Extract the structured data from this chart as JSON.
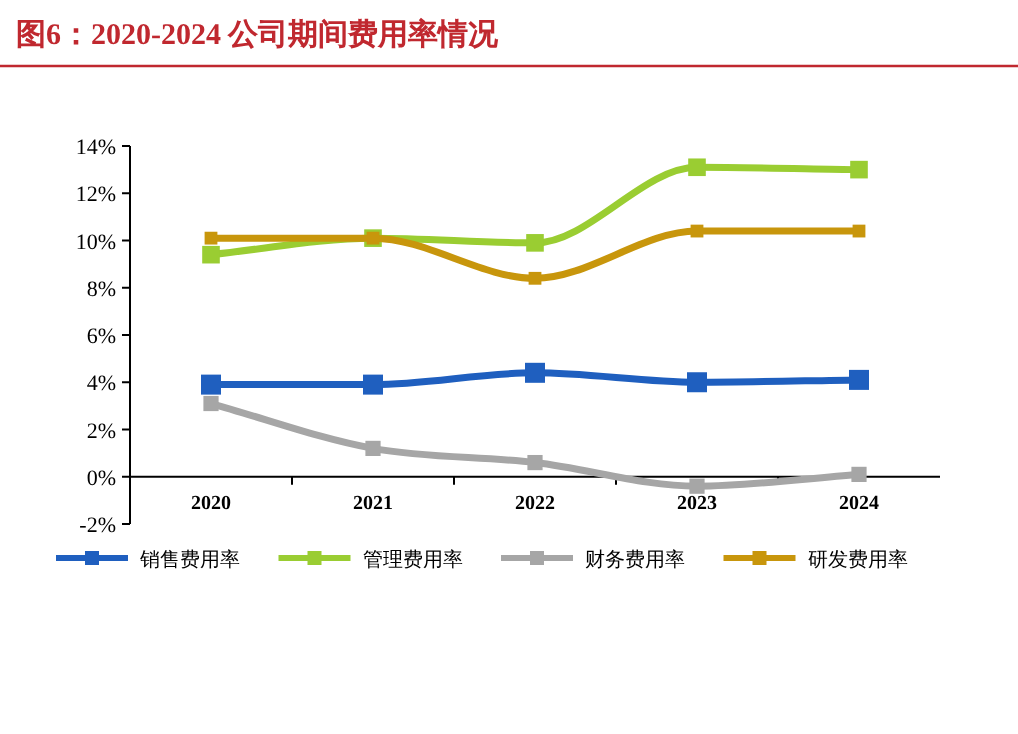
{
  "chart_data": {
    "type": "line",
    "title": "图6：2020-2024 公司期间费用率情况",
    "categories": [
      "2020",
      "2021",
      "2022",
      "2023",
      "2024"
    ],
    "series": [
      {
        "name": "销售费用率",
        "color": "#1f5fbf",
        "values": [
          3.9,
          3.9,
          4.4,
          4.0,
          4.1
        ]
      },
      {
        "name": "管理费用率",
        "color": "#9acd32",
        "values": [
          9.4,
          10.1,
          9.9,
          13.1,
          13.0
        ]
      },
      {
        "name": "财务费用率",
        "color": "#a6a6a6",
        "values": [
          3.1,
          1.2,
          0.6,
          -0.4,
          0.1
        ]
      },
      {
        "name": "研发费用率",
        "color": "#c8960c",
        "values": [
          10.1,
          10.1,
          8.4,
          10.4,
          10.4
        ]
      }
    ],
    "ylim": [
      -2,
      14
    ],
    "yticks": [
      {
        "value": -2,
        "label": "-2%"
      },
      {
        "value": 0,
        "label": "0%"
      },
      {
        "value": 2,
        "label": "2%"
      },
      {
        "value": 4,
        "label": "4%"
      },
      {
        "value": 6,
        "label": "6%"
      },
      {
        "value": 8,
        "label": "8%"
      },
      {
        "value": 10,
        "label": "10%"
      },
      {
        "value": 12,
        "label": "12%"
      },
      {
        "value": 14,
        "label": "14%"
      }
    ],
    "legend": "bottom",
    "marker": "square",
    "line_style": "solid",
    "grid": false
  }
}
